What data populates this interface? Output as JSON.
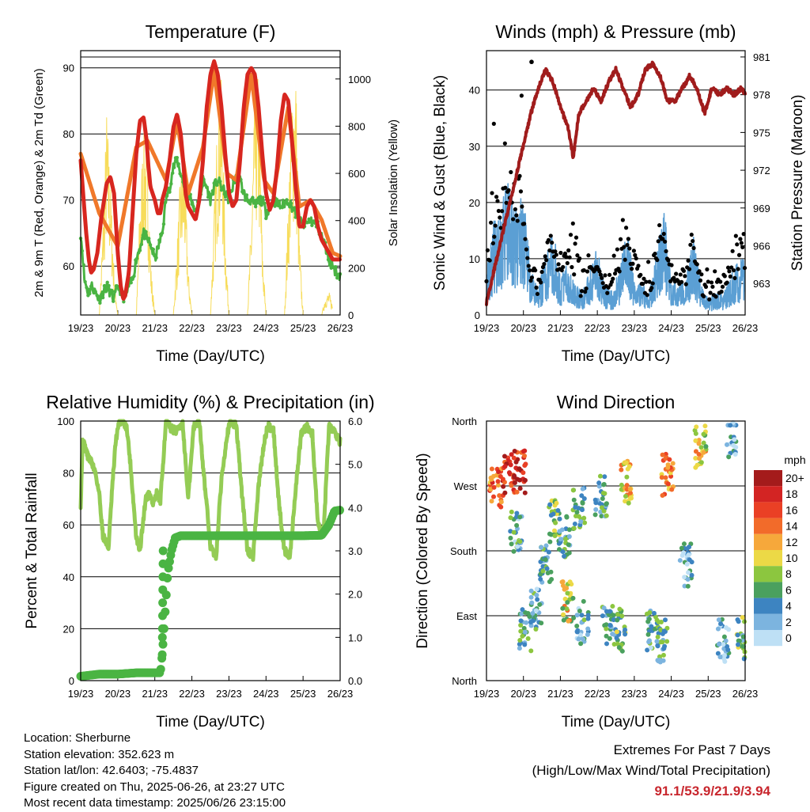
{
  "colors": {
    "temp_2m": "#d7261f",
    "temp_9m": "#f0782a",
    "dewpoint": "#4ab443",
    "solar": "#f7dc5a",
    "wind_speed": "#5b9fd4",
    "wind_gust": "#000000",
    "pressure": "#a01c1c",
    "rh": "#94cc55",
    "precip": "#4ab443"
  },
  "x_ticks": [
    "19/23",
    "20/23",
    "21/23",
    "22/23",
    "23/23",
    "24/23",
    "25/23",
    "26/23"
  ],
  "chart_data": [
    {
      "type": "line",
      "title": "Temperature (F)",
      "xlabel": "Time (Day/UTC)",
      "ylabel": "2m & 9m T (Red, Orange) & 2m Td (Green)",
      "y2label": "Solar Insolation (Yellow)",
      "ylim": [
        52.6,
        92.6
      ],
      "yticks": [
        60,
        70,
        80,
        90
      ],
      "y2lim": [
        0,
        1120
      ],
      "y2ticks": [
        0,
        200,
        400,
        600,
        800,
        1000
      ],
      "series": [
        {
          "name": "2m T",
          "axis": "left",
          "x": [
            0,
            0.08,
            0.15,
            0.22,
            0.28,
            0.35,
            0.45,
            0.55,
            0.7,
            0.8,
            0.9,
            1.0,
            1.08,
            1.15,
            1.2,
            1.3,
            1.4,
            1.5,
            1.6,
            1.7,
            1.78,
            1.83,
            1.88,
            2.0,
            2.08,
            2.15,
            2.2,
            2.3,
            2.4,
            2.5,
            2.6,
            2.7,
            2.78,
            2.83,
            2.9,
            3.0,
            3.1,
            3.2,
            3.3,
            3.4,
            3.5,
            3.6,
            3.7,
            3.8,
            3.9,
            4.0,
            4.1,
            4.2,
            4.3,
            4.4,
            4.5,
            4.6,
            4.7,
            4.8,
            4.9,
            5.0,
            5.1,
            5.2,
            5.3,
            5.4,
            5.5,
            5.6,
            5.7,
            5.8,
            5.9,
            6.0,
            6.1,
            6.2,
            6.3,
            6.4,
            6.5,
            6.6,
            6.7,
            6.8,
            6.9,
            7.0
          ],
          "values": [
            76,
            70,
            65,
            61,
            59,
            59.5,
            62,
            67,
            72.5,
            73.5,
            71,
            62,
            57,
            55,
            55.5,
            59,
            68,
            77,
            82,
            82.5,
            79,
            75,
            72,
            70,
            68,
            68,
            70,
            72,
            76,
            81,
            83,
            80,
            75,
            71,
            69,
            68,
            67,
            70,
            76,
            84,
            89,
            91,
            89,
            84,
            77,
            71,
            69,
            70,
            76,
            84,
            89,
            90,
            89,
            84,
            77,
            71,
            68.5,
            70,
            75,
            82,
            86,
            85,
            79,
            72,
            66,
            66,
            69,
            70,
            69,
            66,
            64,
            63,
            62,
            61,
            61,
            61
          ]
        },
        {
          "name": "9m T",
          "axis": "left",
          "x": [
            0,
            0.5,
            1.0,
            1.5,
            1.8,
            2.3,
            2.6,
            2.9,
            3.3,
            3.6,
            3.95,
            4.2,
            4.6,
            4.95,
            5.2,
            5.6,
            5.9,
            6.2,
            6.5,
            6.8,
            7.0
          ],
          "values": [
            77,
            68,
            63,
            78,
            79,
            73,
            82,
            71,
            78,
            89.5,
            74,
            73,
            89,
            73,
            71,
            84,
            69,
            70,
            67,
            62,
            61.5
          ]
        },
        {
          "name": "2m Td",
          "axis": "left",
          "x": [
            0,
            0.05,
            0.1,
            0.2,
            0.3,
            0.4,
            0.5,
            0.6,
            0.7,
            0.8,
            0.9,
            1.0,
            1.1,
            1.2,
            1.3,
            1.4,
            1.5,
            1.6,
            1.7,
            1.8,
            1.9,
            2.0,
            2.1,
            2.2,
            2.3,
            2.4,
            2.5,
            2.6,
            2.7,
            2.8,
            2.9,
            3.0,
            3.1,
            3.2,
            3.3,
            3.4,
            3.5,
            3.6,
            3.7,
            3.8,
            3.9,
            4.0,
            4.1,
            4.2,
            4.3,
            4.4,
            4.5,
            4.6,
            4.7,
            4.8,
            4.9,
            5.0,
            5.2,
            5.4,
            5.6,
            5.8,
            6.0,
            6.2,
            6.4,
            6.6,
            6.7,
            6.8,
            6.9,
            7.0
          ],
          "values": [
            65,
            62,
            58,
            56,
            57,
            56,
            55,
            56,
            57,
            56,
            55,
            57,
            56,
            55,
            57,
            58,
            61,
            63,
            65,
            64,
            63,
            61,
            63,
            65,
            70,
            72,
            75,
            76,
            74,
            72,
            71,
            70,
            68,
            70,
            73,
            72,
            70,
            72,
            73,
            72,
            71,
            70,
            72,
            74,
            73,
            71,
            70,
            70,
            69,
            70,
            70,
            68,
            70,
            69,
            70,
            68,
            66,
            67,
            66,
            63,
            61,
            60,
            59,
            58.5
          ]
        },
        {
          "name": "Solar",
          "axis": "right",
          "x": [
            0.5,
            0.6,
            0.7,
            0.8,
            0.9,
            1.0,
            1.5,
            1.6,
            1.7,
            1.8,
            1.9,
            2.0,
            2.5,
            2.6,
            2.7,
            2.8,
            2.9,
            3.0,
            3.5,
            3.6,
            3.7,
            3.8,
            3.9,
            4.0,
            4.5,
            4.6,
            4.7,
            4.8,
            4.9,
            5.0,
            5.5,
            5.6,
            5.7,
            5.8,
            5.9,
            6.0,
            6.5,
            6.6,
            6.7,
            6.8
          ],
          "values": [
            0,
            400,
            880,
            600,
            200,
            0,
            0,
            500,
            830,
            760,
            200,
            0,
            0,
            300,
            640,
            700,
            200,
            0,
            0,
            450,
            920,
            1010,
            350,
            0,
            0,
            420,
            980,
            1040,
            310,
            0,
            0,
            500,
            1000,
            1110,
            330,
            0,
            0,
            80,
            100,
            40
          ]
        }
      ]
    },
    {
      "type": "line",
      "title": "Winds (mph) & Pressure (mb)",
      "xlabel": "Time (Day/UTC)",
      "ylabel": "Sonic Wind & Gust (Blue, Black)",
      "y2label": "Station Pressure (Maroon)",
      "ylim": [
        0,
        47
      ],
      "yticks": [
        0,
        10,
        20,
        30,
        40
      ],
      "y2lim": [
        960.5,
        981.5
      ],
      "y2ticks": [
        963,
        966,
        969,
        972,
        975,
        978,
        981
      ],
      "series": [
        {
          "name": "Gust peaks",
          "axis": "left",
          "x": [
            0,
            0.1,
            0.3,
            0.5,
            0.7,
            0.9,
            1.1,
            1.4,
            1.7,
            2.0,
            2.3,
            2.6,
            2.9,
            3.2,
            3.5,
            3.7,
            4.0,
            4.3,
            4.6,
            4.9,
            5.2,
            5.5,
            5.8,
            6.1,
            6.4,
            6.7,
            7.0
          ],
          "values": [
            22,
            24,
            26,
            25,
            28,
            30,
            8,
            10,
            17,
            12,
            18,
            14,
            8,
            8,
            15,
            20,
            12,
            8,
            24,
            10,
            8,
            18,
            9,
            8,
            9,
            14,
            18
          ]
        },
        {
          "name": "Wind speed",
          "axis": "left",
          "x": [
            0,
            0.2,
            0.4,
            0.6,
            0.8,
            1.0,
            1.2,
            1.4,
            1.6,
            1.8,
            2.0,
            2.2,
            2.4,
            2.6,
            2.8,
            3.0,
            3.2,
            3.4,
            3.6,
            3.8,
            4.0,
            4.2,
            4.4,
            4.6,
            4.8,
            5.0,
            5.2,
            5.4,
            5.6,
            5.8,
            6.0,
            6.2,
            6.4,
            6.6,
            6.8,
            7.0
          ],
          "values": [
            6,
            12,
            15,
            17,
            14,
            16,
            6,
            3,
            8,
            11,
            5,
            7,
            4,
            3,
            6,
            9,
            4,
            3,
            6,
            11,
            5,
            4,
            3,
            8,
            14,
            5,
            4,
            5,
            10,
            4,
            2,
            3,
            3,
            5,
            7,
            8
          ]
        },
        {
          "name": "Pressure",
          "axis": "right",
          "x": [
            0,
            0.2,
            0.4,
            0.6,
            0.8,
            1.0,
            1.2,
            1.4,
            1.6,
            1.8,
            2.0,
            2.2,
            2.35,
            2.5,
            2.7,
            2.9,
            3.1,
            3.3,
            3.5,
            3.7,
            3.9,
            4.1,
            4.3,
            4.5,
            4.7,
            4.9,
            5.1,
            5.3,
            5.5,
            5.7,
            5.9,
            6.1,
            6.3,
            6.5,
            6.7,
            6.9,
            7.0
          ],
          "values": [
            961.5,
            964,
            966.5,
            969,
            971.5,
            974,
            976.5,
            978.5,
            980,
            979,
            977,
            975.5,
            973,
            976.5,
            977.5,
            978.5,
            977.5,
            979,
            980,
            978.5,
            977,
            978,
            980,
            980.5,
            979.5,
            977.5,
            977.5,
            978.5,
            979.5,
            978.5,
            976.5,
            978.5,
            978,
            978.5,
            978,
            978.5,
            978
          ]
        }
      ]
    },
    {
      "type": "line",
      "title": "Relative Humidity (%) & Precipitation (in)",
      "xlabel": "Time (Day/UTC)",
      "ylabel": "Percent & Total Rainfall",
      "ylim": [
        0,
        100
      ],
      "yticks": [
        0,
        20,
        40,
        60,
        80,
        100
      ],
      "y2lim": [
        0,
        6
      ],
      "y2ticks": [
        "0.0",
        "1.0",
        "2.0",
        "3.0",
        "4.0",
        "5.0",
        "6.0"
      ],
      "series": [
        {
          "name": "RH",
          "axis": "left",
          "x": [
            0,
            0.05,
            0.12,
            0.2,
            0.3,
            0.4,
            0.5,
            0.6,
            0.75,
            0.85,
            0.95,
            1.05,
            1.15,
            1.25,
            1.35,
            1.5,
            1.6,
            1.75,
            1.85,
            1.95,
            2.05,
            2.15,
            2.3,
            2.45,
            2.6,
            2.75,
            2.9,
            3.05,
            3.2,
            3.35,
            3.5,
            3.65,
            3.8,
            3.95,
            4.05,
            4.2,
            4.35,
            4.5,
            4.65,
            4.8,
            4.95,
            5.05,
            5.2,
            5.35,
            5.5,
            5.65,
            5.8,
            5.95,
            6.1,
            6.25,
            6.4,
            6.55,
            6.7,
            6.85,
            7.0
          ],
          "values": [
            68,
            92,
            90,
            86,
            84,
            80,
            72,
            56,
            51,
            74,
            93,
            100,
            100,
            97,
            82,
            55,
            50,
            70,
            72,
            68,
            72,
            69,
            100,
            97,
            96,
            100,
            70,
            98,
            100,
            75,
            52,
            47,
            78,
            95,
            100,
            98,
            72,
            50,
            48,
            75,
            92,
            98,
            97,
            68,
            50,
            48,
            74,
            95,
            98,
            95,
            60,
            56,
            98,
            96,
            92
          ]
        },
        {
          "name": "Total Rainfall",
          "axis": "right",
          "x": [
            0,
            0.5,
            1.0,
            1.5,
            2.15,
            2.2,
            2.25,
            2.35,
            2.45,
            2.55,
            2.7,
            3.0,
            4.0,
            5.0,
            5.5,
            6.0,
            6.5,
            6.7,
            6.85,
            7.0
          ],
          "values": [
            0.1,
            0.15,
            0.15,
            0.18,
            0.18,
            0.6,
            1.2,
            2.5,
            3.0,
            3.3,
            3.35,
            3.35,
            3.35,
            3.35,
            3.35,
            3.35,
            3.36,
            3.6,
            3.92,
            3.94
          ]
        }
      ]
    },
    {
      "type": "scatter",
      "title": "Wind Direction",
      "xlabel": "Time (Day/UTC)",
      "ylabel": "Direction (Colored By Speed)",
      "ytick_labels": [
        "North",
        "East",
        "South",
        "West",
        "North"
      ],
      "ylim": [
        0,
        360
      ],
      "legend": {
        "title": "mph",
        "labels": [
          "20+",
          "18",
          "16",
          "14",
          "12",
          "10",
          "8",
          "6",
          "4",
          "2",
          "0"
        ],
        "colors": [
          "#a41b1b",
          "#d32423",
          "#ea4025",
          "#f26b2a",
          "#f6a83b",
          "#ecd946",
          "#8cc63f",
          "#4aa05e",
          "#3d84c1",
          "#7cb4df",
          "#bee0f5"
        ]
      },
      "clusters": [
        {
          "x": 0.25,
          "dir": 270,
          "speed": 14
        },
        {
          "x": 0.6,
          "dir": 285,
          "speed": 18
        },
        {
          "x": 0.9,
          "dir": 290,
          "speed": 18
        },
        {
          "x": 0.8,
          "dir": 205,
          "speed": 4
        },
        {
          "x": 1.05,
          "dir": 70,
          "speed": 5
        },
        {
          "x": 1.35,
          "dir": 100,
          "speed": 4
        },
        {
          "x": 1.6,
          "dir": 160,
          "speed": 4
        },
        {
          "x": 1.85,
          "dir": 220,
          "speed": 7
        },
        {
          "x": 2.1,
          "dir": 200,
          "speed": 5
        },
        {
          "x": 2.2,
          "dir": 110,
          "speed": 10
        },
        {
          "x": 2.5,
          "dir": 240,
          "speed": 5
        },
        {
          "x": 2.6,
          "dir": 80,
          "speed": 4
        },
        {
          "x": 3.1,
          "dir": 255,
          "speed": 5
        },
        {
          "x": 3.3,
          "dir": 75,
          "speed": 5
        },
        {
          "x": 3.8,
          "dir": 275,
          "speed": 11
        },
        {
          "x": 3.6,
          "dir": 70,
          "speed": 6
        },
        {
          "x": 4.5,
          "dir": 70,
          "speed": 4
        },
        {
          "x": 4.9,
          "dir": 285,
          "speed": 14
        },
        {
          "x": 4.75,
          "dir": 55,
          "speed": 5
        },
        {
          "x": 5.4,
          "dir": 160,
          "speed": 3
        },
        {
          "x": 5.8,
          "dir": 325,
          "speed": 10
        },
        {
          "x": 6.4,
          "dir": 55,
          "speed": 3
        },
        {
          "x": 6.6,
          "dir": 340,
          "speed": 3
        },
        {
          "x": 6.9,
          "dir": 60,
          "speed": 6
        }
      ]
    }
  ],
  "footer": {
    "location": "Location: Sherburne",
    "elevation": "Station elevation: 352.623 m",
    "latlon": "Station lat/lon: 42.6403; -75.4837",
    "created": "Figure created on Thu, 2025-06-26, at 23:27 UTC",
    "recent": "Most recent data timestamp: 2025/06/26 23:15:00",
    "extremes_title": "Extremes For Past 7 Days",
    "extremes_sub": "(High/Low/Max Wind/Total Precipitation)",
    "extremes_values": "91.1/53.9/21.9/3.94"
  }
}
